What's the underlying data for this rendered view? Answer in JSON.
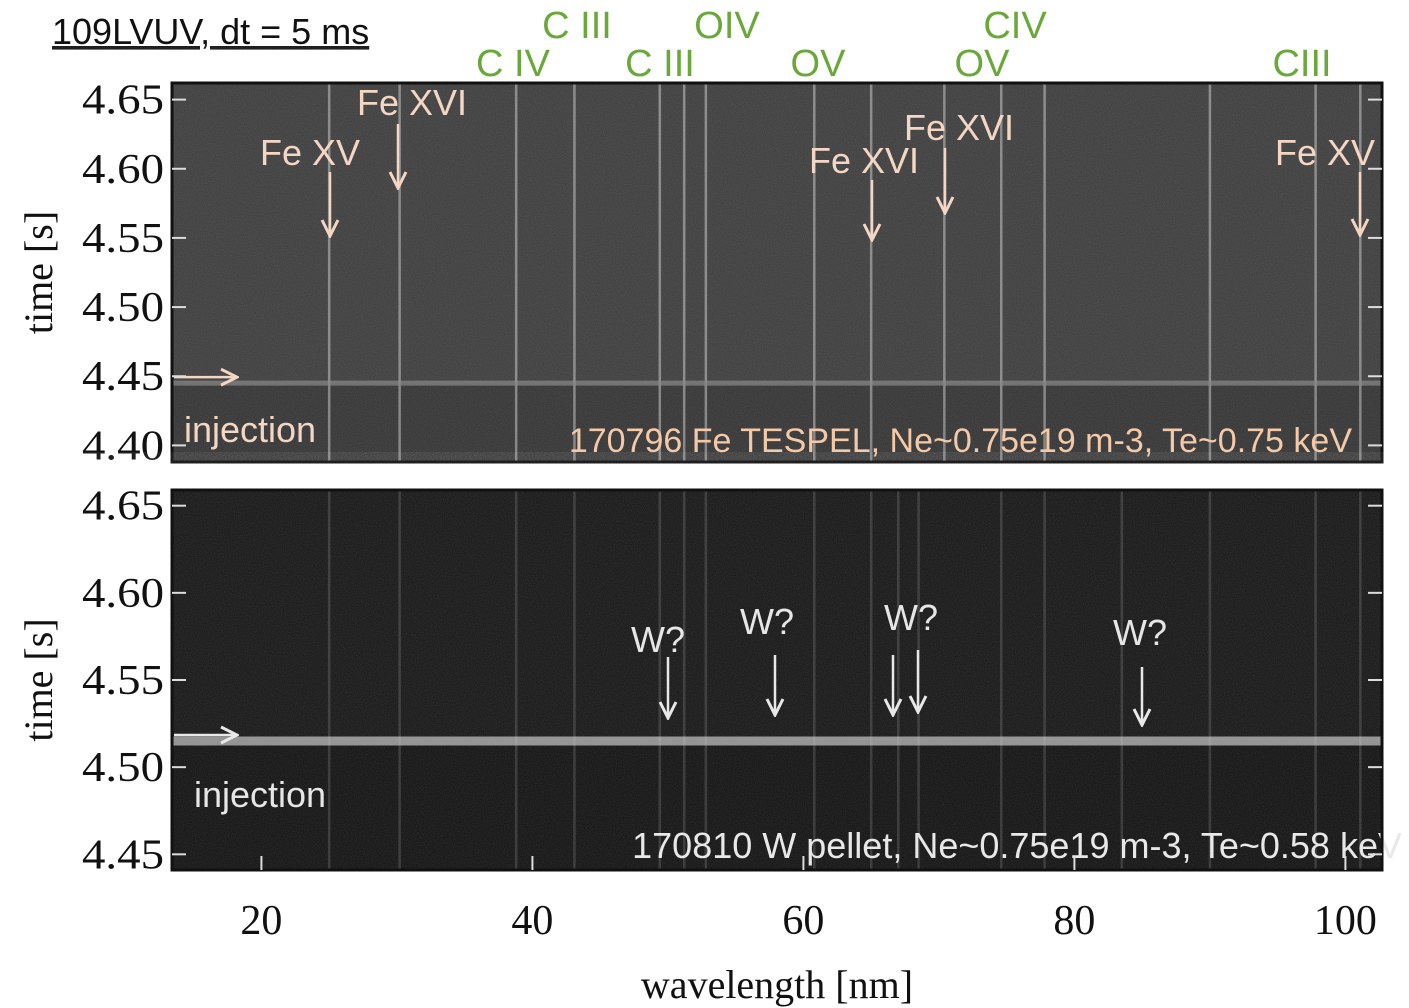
{
  "header": "109LVUV, dt = 5 ms",
  "chart_data": [
    {
      "type": "spectrogram",
      "ylabel": "time [s]",
      "xlim": [
        13.4,
        102.7
      ],
      "ylim": [
        4.388,
        4.662
      ],
      "yticks": [
        {
          "value": 4.4,
          "label": "4.40"
        },
        4.45,
        {
          "value": 4.5,
          "label": "4.50"
        },
        4.55,
        {
          "value": 4.6,
          "label": "4.60"
        },
        4.65
      ],
      "injection_time": 4.445,
      "lines": [
        25.0,
        30.2,
        38.8,
        43.1,
        49.4,
        51.2,
        52.8,
        60.8,
        65.0,
        70.4,
        74.6,
        77.8,
        90.0,
        97.8,
        101.1
      ],
      "injection_label": "injection",
      "caption": "170796 Fe TESPEL, Ne~0.75e19 m-3, Te~0.75 keV",
      "line_labels": [
        "C IV",
        "C III",
        "C III",
        "OIV",
        "OV",
        "OV",
        "CIV",
        "CIII"
      ],
      "annotations": [
        "Fe XV",
        "Fe XVI",
        "Fe XVI",
        "Fe XVI",
        "Fe XV"
      ]
    },
    {
      "type": "spectrogram",
      "ylabel": "time [s]",
      "xlabel": "wavelength [nm]",
      "xlim": [
        13.4,
        102.7
      ],
      "ylim": [
        4.441,
        4.659
      ],
      "xticks": [
        20,
        40,
        60,
        80,
        100
      ],
      "yticks": [
        4.45,
        {
          "value": 4.5,
          "label": "4.50"
        },
        4.55,
        {
          "value": 4.6,
          "label": "4.60"
        },
        4.65
      ],
      "injection_time": 4.515,
      "lines": [
        25.0,
        30.2,
        38.8,
        43.1,
        49.4,
        51.2,
        52.8,
        60.8,
        65.0,
        67.0,
        68.5,
        74.6,
        77.8,
        83.5,
        90.0,
        97.8,
        101.1
      ],
      "injection_label": "injection",
      "caption": "170810 W pellet, Ne~0.75e19 m-3, Te~0.58 keV",
      "annotations": [
        "W?",
        "W?",
        "W?",
        "W?"
      ]
    }
  ]
}
